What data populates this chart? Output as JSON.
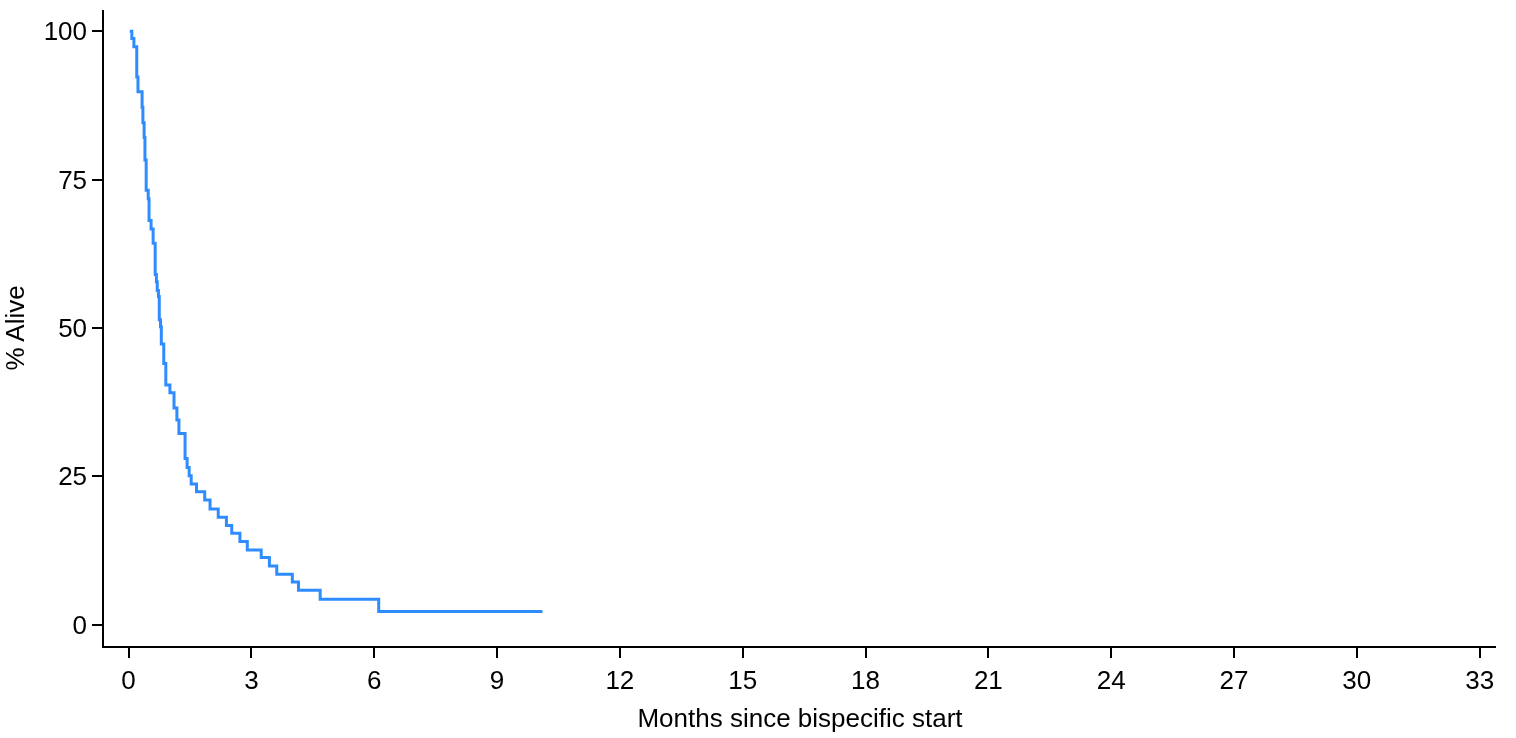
{
  "chart_data": {
    "type": "step",
    "xlabel": "Months since bispecific start",
    "ylabel": "% Alive",
    "x": [
      0.03,
      0.08,
      0.13,
      0.2,
      0.23,
      0.33,
      0.35,
      0.38,
      0.4,
      0.43,
      0.48,
      0.5,
      0.55,
      0.6,
      0.65,
      0.68,
      0.7,
      0.73,
      0.75,
      0.78,
      0.8,
      0.86,
      0.91,
      1.01,
      1.11,
      1.18,
      1.23,
      1.38,
      1.43,
      1.48,
      1.53,
      1.66,
      1.86,
      1.99,
      2.19,
      2.39,
      2.52,
      2.72,
      2.9,
      3.24,
      3.44,
      3.62,
      4.0,
      4.15,
      4.68,
      6.11,
      10.11
    ],
    "series": [
      {
        "color": "#2f8cff",
        "values": [
          100,
          98.8,
          97.4,
          92.3,
          89.8,
          87.2,
          84.6,
          82.1,
          78.3,
          73.2,
          71.8,
          68.1,
          66.7,
          64.3,
          59,
          57.8,
          56.3,
          55.3,
          51.4,
          50.2,
          47.3,
          44,
          40.4,
          39.1,
          36.5,
          34.5,
          32.2,
          28,
          26.5,
          25.1,
          23.7,
          22.4,
          21,
          19.5,
          18.1,
          16.7,
          15.4,
          14,
          12.6,
          11.3,
          9.9,
          8.5,
          7.2,
          5.8,
          4.3,
          2.2,
          2.2
        ]
      }
    ],
    "xlim": [
      -0.6,
      33.4
    ],
    "xticks": [
      0,
      3,
      6,
      9,
      12,
      15,
      18,
      21,
      24,
      27,
      30,
      33
    ],
    "ylim": [
      -3.6,
      103.6
    ],
    "yticks": [
      0,
      25,
      50,
      75,
      100
    ],
    "line_style": "solid"
  }
}
